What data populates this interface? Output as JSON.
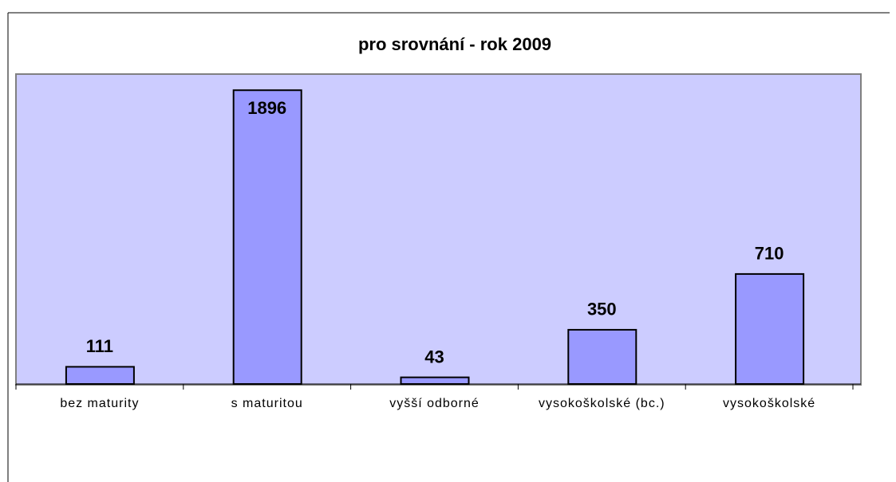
{
  "chart_data": {
    "type": "bar",
    "title": "pro srovnání  - rok 2009",
    "categories": [
      "bez maturity",
      "s maturitou",
      "vyšší odborné",
      "vysokoškolské (bc.)",
      "vysokoškolské"
    ],
    "values": [
      111,
      1896,
      43,
      350,
      710
    ],
    "color": "#9999ff",
    "ylim": [
      0,
      2000
    ]
  }
}
